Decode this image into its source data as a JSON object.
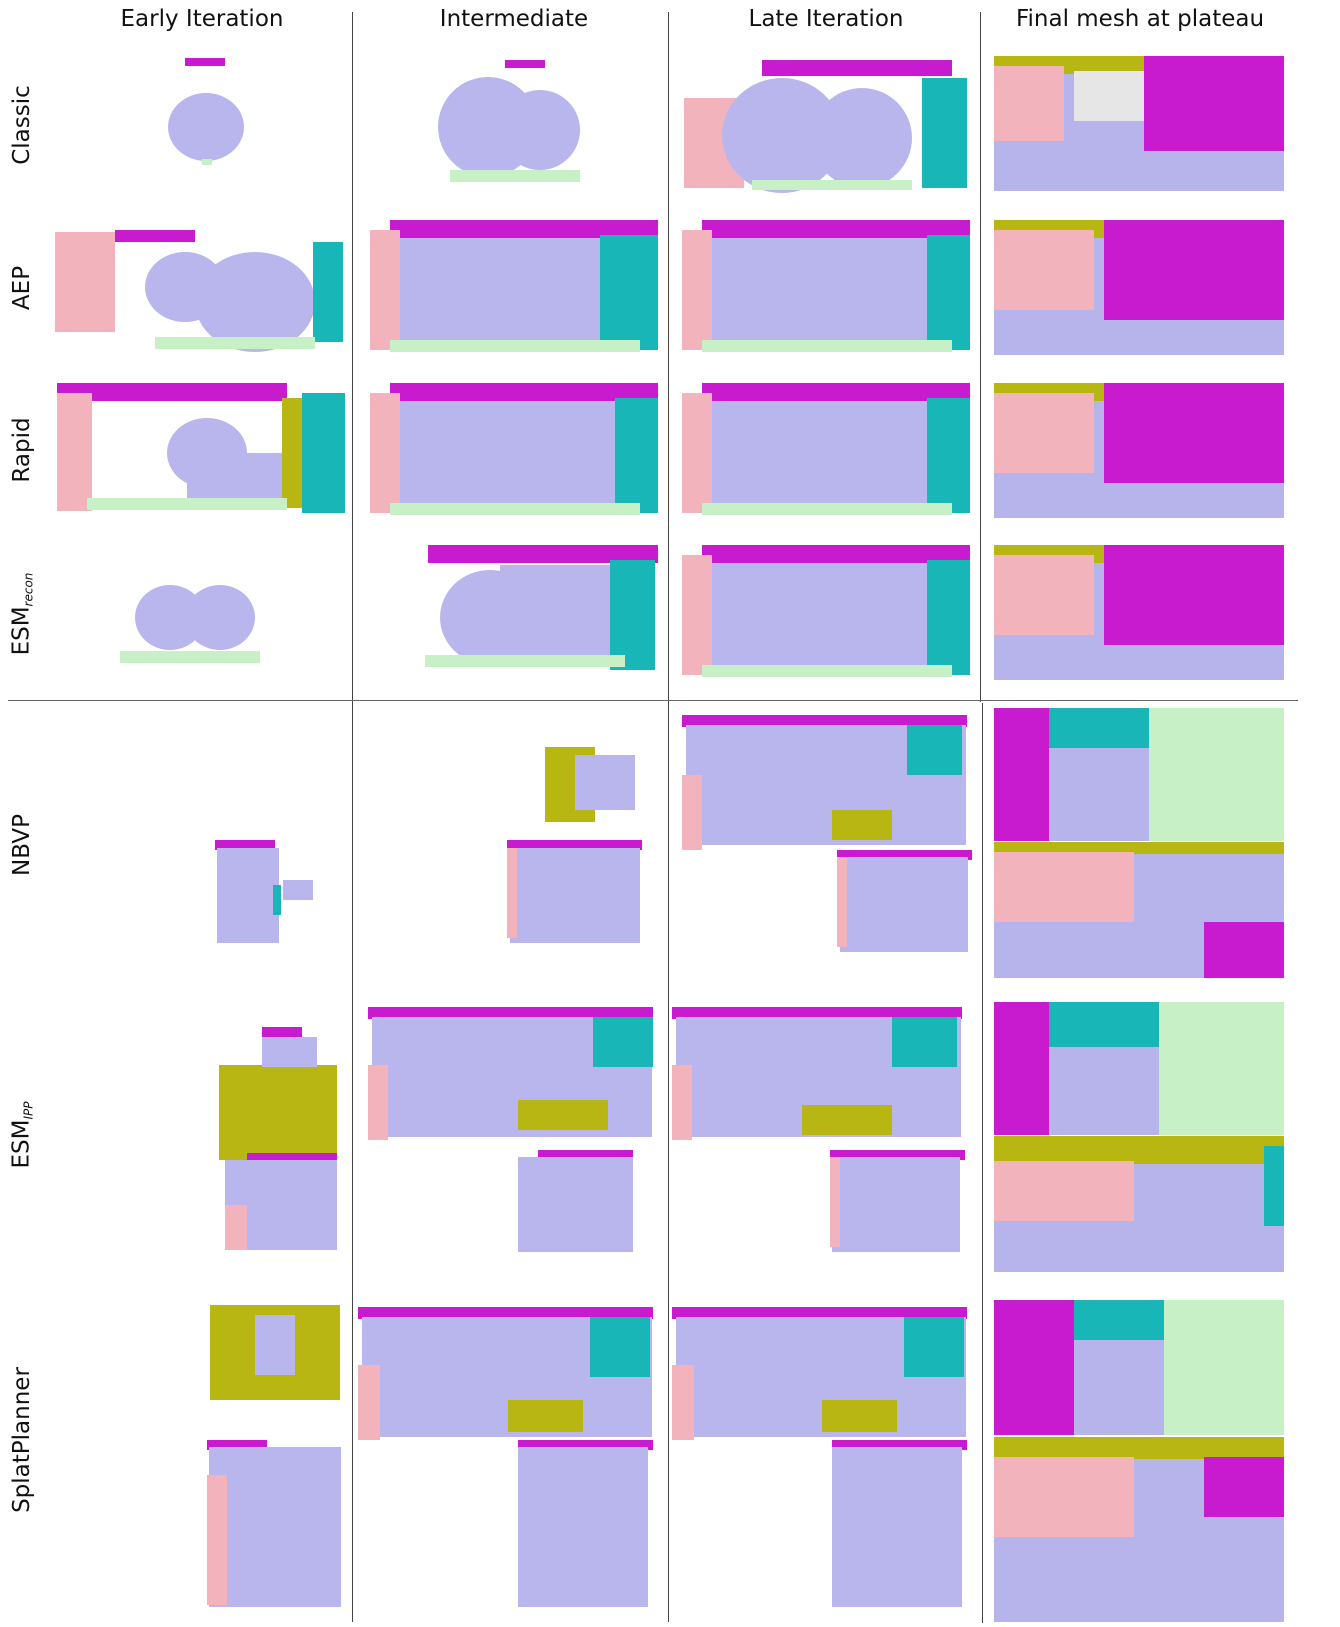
{
  "columns": [
    "Early Iteration",
    "Intermediate",
    "Late Iteration",
    "Final mesh at plateau"
  ],
  "rows": [
    {
      "label": "Classic",
      "sub": ""
    },
    {
      "label": "AEP",
      "sub": ""
    },
    {
      "label": "Rapid",
      "sub": ""
    },
    {
      "label": "ESM",
      "sub": "recon"
    },
    {
      "label": "NBVP",
      "sub": ""
    },
    {
      "label": "ESM",
      "sub": "IPP"
    },
    {
      "label": "SplatPlanner",
      "sub": ""
    }
  ],
  "colors": {
    "lavender": "#b9b6ee",
    "magenta": "#c81bd0",
    "teal": "#18b6b6",
    "pink": "#f2b3bd",
    "olive": "#b8b612",
    "mint": "#c8f0c6"
  }
}
